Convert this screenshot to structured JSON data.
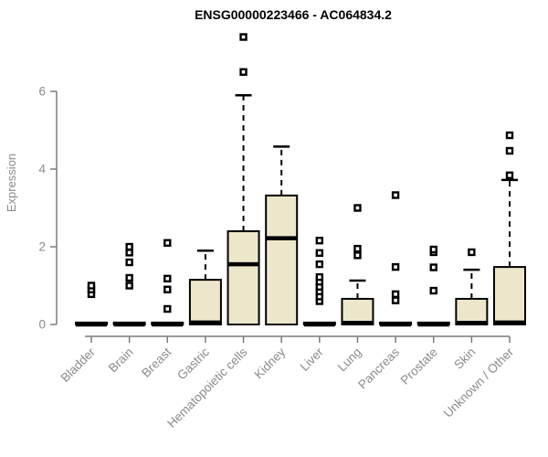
{
  "chart_data": {
    "type": "boxplot",
    "title": "ENSG00000223466 - AC064834.2",
    "ylabel": "Expression",
    "xlabel": "",
    "ylim": [
      0,
      7.4
    ],
    "yticks": [
      0,
      2,
      4,
      6
    ],
    "grid": false,
    "legend": false,
    "categories": [
      "Bladder",
      "Brain",
      "Breast",
      "Gastric",
      "Hematopoietic cells",
      "Kidney",
      "Liver",
      "Lung",
      "Pancreas",
      "Prostate",
      "Skin",
      "Unknown / Other"
    ],
    "series": [
      {
        "name": "Bladder",
        "q1": 0,
        "median": 0,
        "q3": 0.05,
        "whisker_low": 0,
        "whisker_high": 0.05,
        "outliers": [
          0.78,
          0.9,
          1.0
        ]
      },
      {
        "name": "Brain",
        "q1": 0,
        "median": 0,
        "q3": 0.05,
        "whisker_low": 0,
        "whisker_high": 0.05,
        "outliers": [
          1.0,
          1.2,
          1.6,
          1.85,
          2.0
        ]
      },
      {
        "name": "Breast",
        "q1": 0,
        "median": 0,
        "q3": 0.05,
        "whisker_low": 0,
        "whisker_high": 0.05,
        "outliers": [
          0.4,
          0.9,
          1.18,
          2.1
        ]
      },
      {
        "name": "Gastric",
        "q1": 0,
        "median": 0.05,
        "q3": 1.15,
        "whisker_low": 0,
        "whisker_high": 1.9,
        "outliers": []
      },
      {
        "name": "Hematopoietic cells",
        "q1": 0,
        "median": 1.55,
        "q3": 2.4,
        "whisker_low": 0,
        "whisker_high": 5.9,
        "outliers": [
          6.5,
          7.4
        ]
      },
      {
        "name": "Kidney",
        "q1": 0,
        "median": 2.22,
        "q3": 3.32,
        "whisker_low": 0,
        "whisker_high": 4.58,
        "outliers": []
      },
      {
        "name": "Liver",
        "q1": 0,
        "median": 0,
        "q3": 0.05,
        "whisker_low": 0,
        "whisker_high": 0.05,
        "outliers": [
          0.6,
          0.72,
          0.85,
          0.97,
          1.1,
          1.22,
          1.55,
          1.84,
          2.16
        ]
      },
      {
        "name": "Lung",
        "q1": 0,
        "median": 0.04,
        "q3": 0.66,
        "whisker_low": 0,
        "whisker_high": 1.13,
        "outliers": [
          1.78,
          1.95,
          3.0
        ]
      },
      {
        "name": "Pancreas",
        "q1": 0,
        "median": 0,
        "q3": 0.05,
        "whisker_low": 0,
        "whisker_high": 0.05,
        "outliers": [
          0.62,
          0.78,
          1.48,
          3.33
        ]
      },
      {
        "name": "Prostate",
        "q1": 0,
        "median": 0,
        "q3": 0.05,
        "whisker_low": 0,
        "whisker_high": 0.05,
        "outliers": [
          0.87,
          1.47,
          1.86,
          1.93
        ]
      },
      {
        "name": "Skin",
        "q1": 0,
        "median": 0.04,
        "q3": 0.66,
        "whisker_low": 0,
        "whisker_high": 1.41,
        "outliers": [
          1.86
        ]
      },
      {
        "name": "Unknown / Other",
        "q1": 0,
        "median": 0.05,
        "q3": 1.48,
        "whisker_low": 0,
        "whisker_high": 3.72,
        "outliers": [
          3.84,
          4.47,
          4.87
        ]
      }
    ]
  },
  "colors": {
    "background": "#ffffff",
    "box_fill": "#ece6cb",
    "box_stroke": "#000000",
    "median": "#000000",
    "whisker": "#000000",
    "outlier": "#000000",
    "axis": "#7b7b7b",
    "axis_text": "#8a8a8a",
    "title_text": "#000000"
  }
}
